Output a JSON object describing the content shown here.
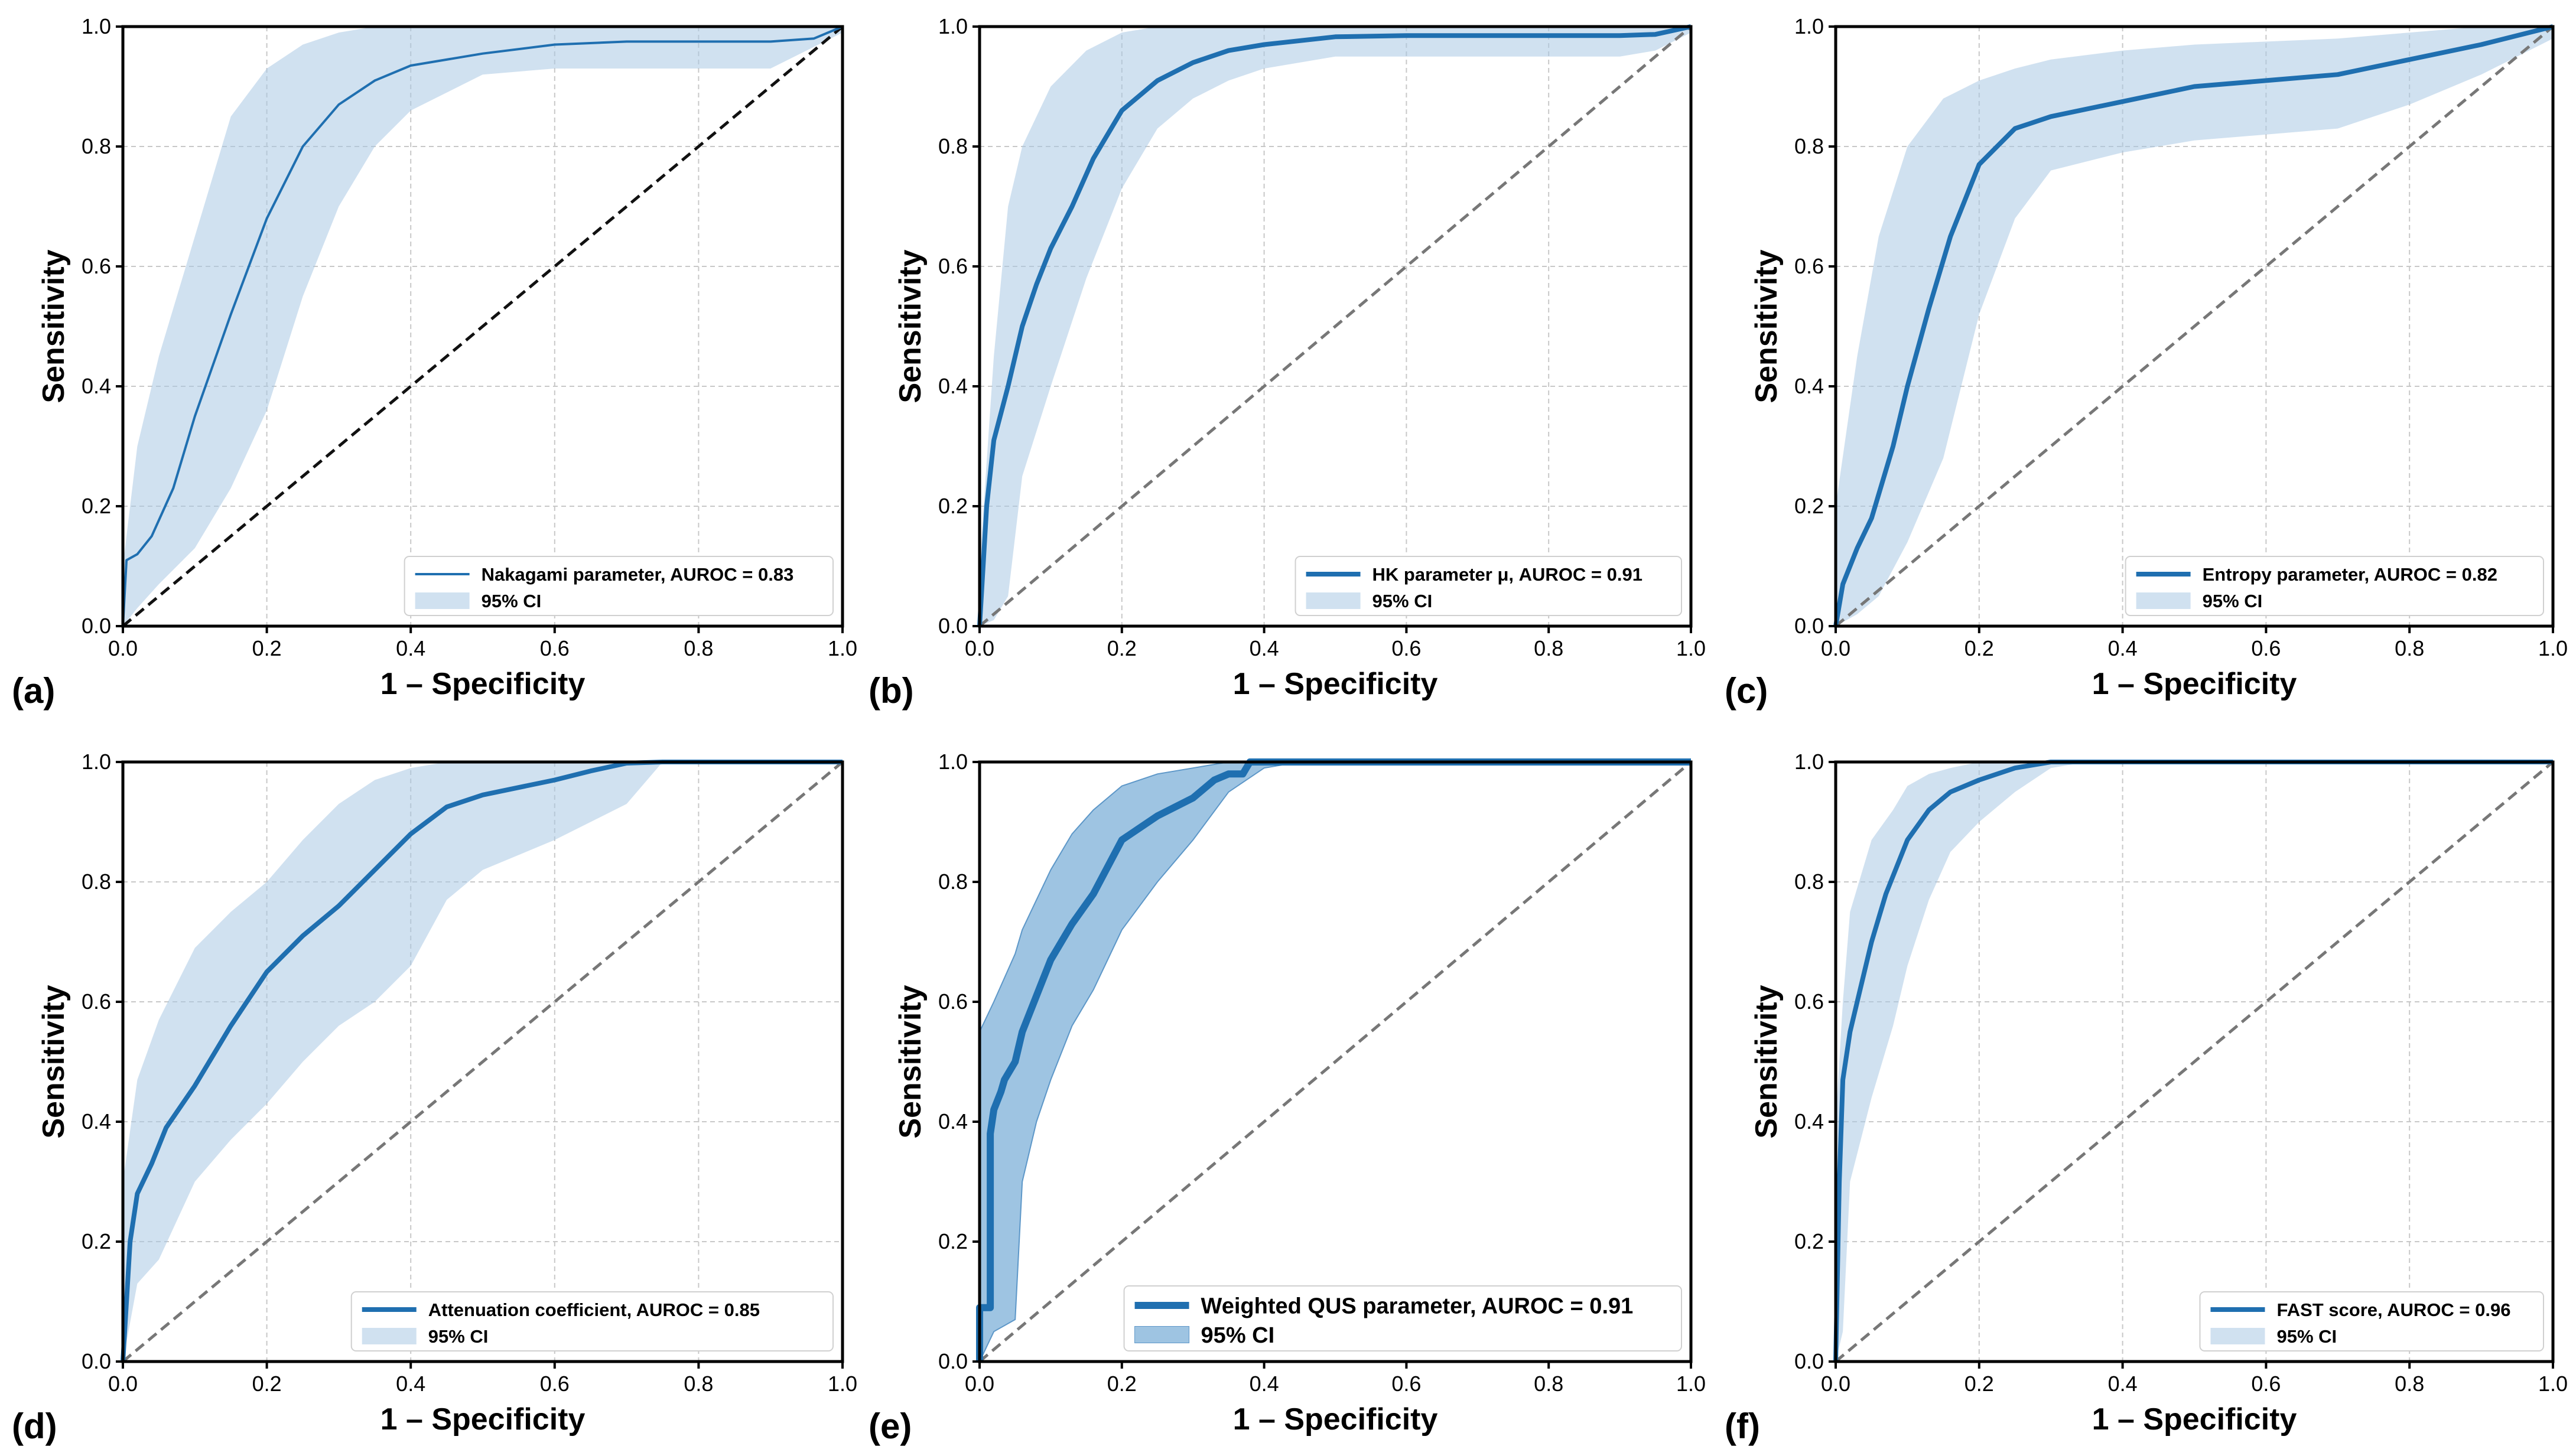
{
  "colors": {
    "curve": "#1f6fb0",
    "ci_fill": "#a9c9e3",
    "ci_fill_dark": "#7eb0d8",
    "diagonal": "#777777",
    "diagonal_black": "#111111",
    "grid": "#c8c8c8",
    "axis": "#000000"
  },
  "chart_data": [
    {
      "type": "line",
      "panel_label": "(a)",
      "xlabel": "1 – Specificity",
      "ylabel": "Sensitivity",
      "xlim": [
        0,
        1
      ],
      "ylim": [
        0,
        1
      ],
      "xticks": [
        "0.0",
        "0.2",
        "0.4",
        "0.6",
        "0.8",
        "1.0"
      ],
      "yticks": [
        "0.0",
        "0.2",
        "0.4",
        "0.6",
        "0.8",
        "1.0"
      ],
      "grid": true,
      "legend_position": "lower-right",
      "diagonal_style": "black",
      "series": [
        {
          "name": "Nakagami parameter, AUROC = 0.83",
          "style": "thin",
          "x": [
            0,
            0.005,
            0.02,
            0.04,
            0.07,
            0.1,
            0.15,
            0.2,
            0.25,
            0.3,
            0.35,
            0.4,
            0.5,
            0.6,
            0.7,
            0.8,
            0.9,
            0.96,
            1.0
          ],
          "y": [
            0,
            0.11,
            0.12,
            0.15,
            0.23,
            0.35,
            0.52,
            0.68,
            0.8,
            0.87,
            0.91,
            0.935,
            0.955,
            0.97,
            0.975,
            0.975,
            0.975,
            0.98,
            1.0
          ]
        },
        {
          "name": "95% CI",
          "kind": "band",
          "x": [
            0,
            0.02,
            0.05,
            0.1,
            0.15,
            0.2,
            0.25,
            0.3,
            0.35,
            0.4,
            0.5,
            0.6,
            0.7,
            0.8,
            0.9,
            1.0
          ],
          "lower": [
            0,
            0.03,
            0.07,
            0.13,
            0.23,
            0.36,
            0.55,
            0.7,
            0.8,
            0.86,
            0.92,
            0.93,
            0.93,
            0.93,
            0.93,
            0.99
          ],
          "upper": [
            0.1,
            0.3,
            0.45,
            0.65,
            0.85,
            0.93,
            0.97,
            0.99,
            1.0,
            1.0,
            1.0,
            1.0,
            1.0,
            1.0,
            1.0,
            1.0
          ]
        }
      ]
    },
    {
      "type": "line",
      "panel_label": "(b)",
      "xlabel": "1 – Specificity",
      "ylabel": "Sensitivity",
      "xlim": [
        0,
        1
      ],
      "ylim": [
        0,
        1
      ],
      "xticks": [
        "0.0",
        "0.2",
        "0.4",
        "0.6",
        "0.8",
        "1.0"
      ],
      "yticks": [
        "0.0",
        "0.2",
        "0.4",
        "0.6",
        "0.8",
        "1.0"
      ],
      "grid": true,
      "legend_position": "lower-right",
      "diagonal_style": "gray",
      "series": [
        {
          "name": "HK parameter μ, AUROC = 0.91",
          "style": "thick",
          "x": [
            0,
            0.01,
            0.02,
            0.04,
            0.06,
            0.08,
            0.1,
            0.13,
            0.16,
            0.2,
            0.25,
            0.3,
            0.35,
            0.4,
            0.5,
            0.6,
            0.7,
            0.8,
            0.9,
            0.95,
            1.0
          ],
          "y": [
            0,
            0.2,
            0.31,
            0.4,
            0.5,
            0.57,
            0.63,
            0.7,
            0.78,
            0.86,
            0.91,
            0.94,
            0.96,
            0.97,
            0.983,
            0.985,
            0.985,
            0.985,
            0.985,
            0.987,
            1.0
          ]
        },
        {
          "name": "95% CI",
          "kind": "band",
          "x": [
            0,
            0.02,
            0.04,
            0.06,
            0.1,
            0.15,
            0.2,
            0.25,
            0.3,
            0.35,
            0.4,
            0.5,
            0.6,
            0.7,
            0.8,
            0.9,
            0.95,
            1.0
          ],
          "lower": [
            0,
            0.01,
            0.05,
            0.25,
            0.4,
            0.58,
            0.73,
            0.83,
            0.88,
            0.91,
            0.93,
            0.95,
            0.95,
            0.95,
            0.95,
            0.95,
            0.96,
            0.99
          ],
          "upper": [
            0.1,
            0.45,
            0.7,
            0.8,
            0.9,
            0.96,
            0.99,
            1.0,
            1.0,
            1.0,
            1.0,
            1.0,
            1.0,
            1.0,
            1.0,
            1.0,
            1.0,
            1.0
          ]
        }
      ]
    },
    {
      "type": "line",
      "panel_label": "(c)",
      "xlabel": "1 – Specificity",
      "ylabel": "Sensitivity",
      "xlim": [
        0,
        1
      ],
      "ylim": [
        0,
        1
      ],
      "xticks": [
        "0.0",
        "0.2",
        "0.4",
        "0.6",
        "0.8",
        "1.0"
      ],
      "yticks": [
        "0.0",
        "0.2",
        "0.4",
        "0.6",
        "0.8",
        "1.0"
      ],
      "grid": true,
      "legend_position": "lower-right",
      "diagonal_style": "gray",
      "series": [
        {
          "name": "Entropy parameter, AUROC = 0.82",
          "style": "thick",
          "x": [
            0,
            0.01,
            0.03,
            0.05,
            0.08,
            0.1,
            0.13,
            0.16,
            0.2,
            0.25,
            0.3,
            0.4,
            0.5,
            0.6,
            0.7,
            0.8,
            0.9,
            1.0
          ],
          "y": [
            0,
            0.07,
            0.13,
            0.18,
            0.3,
            0.4,
            0.53,
            0.65,
            0.77,
            0.83,
            0.85,
            0.875,
            0.9,
            0.91,
            0.92,
            0.945,
            0.97,
            1.0
          ]
        },
        {
          "name": "95% CI",
          "kind": "band",
          "x": [
            0,
            0.03,
            0.06,
            0.1,
            0.15,
            0.2,
            0.25,
            0.3,
            0.4,
            0.5,
            0.6,
            0.7,
            0.8,
            0.9,
            1.0
          ],
          "lower": [
            0,
            0.02,
            0.05,
            0.14,
            0.28,
            0.52,
            0.68,
            0.76,
            0.79,
            0.81,
            0.82,
            0.83,
            0.87,
            0.92,
            0.98
          ],
          "upper": [
            0.2,
            0.45,
            0.65,
            0.8,
            0.88,
            0.91,
            0.93,
            0.945,
            0.96,
            0.97,
            0.975,
            0.98,
            0.99,
            1.0,
            1.0
          ]
        }
      ]
    },
    {
      "type": "line",
      "panel_label": "(d)",
      "xlabel": "1 – Specificity",
      "ylabel": "Sensitivity",
      "xlim": [
        0,
        1
      ],
      "ylim": [
        0,
        1
      ],
      "xticks": [
        "0.0",
        "0.2",
        "0.4",
        "0.6",
        "0.8",
        "1.0"
      ],
      "yticks": [
        "0.0",
        "0.2",
        "0.4",
        "0.6",
        "0.8",
        "1.0"
      ],
      "grid": true,
      "legend_position": "lower-right",
      "diagonal_style": "gray",
      "series": [
        {
          "name": "Attenuation coefficient, AUROC = 0.85",
          "style": "thick",
          "x": [
            0,
            0.01,
            0.02,
            0.04,
            0.06,
            0.1,
            0.15,
            0.2,
            0.25,
            0.3,
            0.35,
            0.4,
            0.45,
            0.5,
            0.6,
            0.65,
            0.7,
            0.75,
            1.0
          ],
          "y": [
            0,
            0.2,
            0.28,
            0.33,
            0.39,
            0.46,
            0.56,
            0.65,
            0.71,
            0.76,
            0.82,
            0.88,
            0.925,
            0.945,
            0.97,
            0.985,
            0.998,
            1.0,
            1.0
          ]
        },
        {
          "name": "95% CI",
          "kind": "band",
          "x": [
            0,
            0.02,
            0.05,
            0.1,
            0.15,
            0.2,
            0.25,
            0.3,
            0.35,
            0.4,
            0.45,
            0.5,
            0.6,
            0.7,
            0.75,
            0.8,
            1.0
          ],
          "lower": [
            0,
            0.13,
            0.17,
            0.3,
            0.37,
            0.43,
            0.5,
            0.56,
            0.6,
            0.66,
            0.77,
            0.82,
            0.87,
            0.93,
            1.0,
            1.0,
            1.0
          ],
          "upper": [
            0.3,
            0.47,
            0.57,
            0.69,
            0.75,
            0.8,
            0.87,
            0.93,
            0.97,
            0.99,
            1.0,
            1.0,
            1.0,
            1.0,
            1.0,
            1.0,
            1.0
          ]
        }
      ]
    },
    {
      "type": "line",
      "panel_label": "(e)",
      "xlabel": "1 – Specificity",
      "ylabel": "Sensitivity",
      "xlim": [
        0,
        1
      ],
      "ylim": [
        0,
        1
      ],
      "xticks": [
        "0.0",
        "0.2",
        "0.4",
        "0.6",
        "0.8",
        "1.0"
      ],
      "yticks": [
        "0.0",
        "0.2",
        "0.4",
        "0.6",
        "0.8",
        "1.0"
      ],
      "grid": false,
      "legend_position": "lower-right",
      "diagonal_style": "gray",
      "series": [
        {
          "name": "Weighted QUS parameter, AUROC = 0.91",
          "style": "heavy",
          "x": [
            0,
            0.0,
            0.015,
            0.015,
            0.02,
            0.03,
            0.035,
            0.05,
            0.06,
            0.08,
            0.1,
            0.13,
            0.16,
            0.2,
            0.25,
            0.3,
            0.33,
            0.35,
            0.37,
            0.38,
            1.0
          ],
          "y": [
            0,
            0.09,
            0.09,
            0.38,
            0.42,
            0.45,
            0.47,
            0.5,
            0.55,
            0.61,
            0.67,
            0.73,
            0.78,
            0.87,
            0.91,
            0.94,
            0.97,
            0.98,
            0.98,
            1.0,
            1.0
          ]
        },
        {
          "name": "95% CI",
          "kind": "band",
          "dark": true,
          "x": [
            0,
            0.02,
            0.05,
            0.06,
            0.08,
            0.1,
            0.13,
            0.16,
            0.2,
            0.25,
            0.3,
            0.35,
            0.4,
            0.45,
            0.5,
            1.0
          ],
          "lower": [
            0,
            0.05,
            0.07,
            0.3,
            0.4,
            0.47,
            0.56,
            0.62,
            0.72,
            0.8,
            0.87,
            0.95,
            0.99,
            1.0,
            1.0,
            1.0
          ],
          "upper": [
            0.55,
            0.6,
            0.68,
            0.72,
            0.77,
            0.82,
            0.88,
            0.92,
            0.96,
            0.98,
            0.99,
            1.0,
            1.0,
            1.0,
            1.0,
            1.0
          ]
        }
      ]
    },
    {
      "type": "line",
      "panel_label": "(f)",
      "xlabel": "1 – Specificity",
      "ylabel": "Sensitivity",
      "xlim": [
        0,
        1
      ],
      "ylim": [
        0,
        1
      ],
      "xticks": [
        "0.0",
        "0.2",
        "0.4",
        "0.6",
        "0.8",
        "1.0"
      ],
      "yticks": [
        "0.0",
        "0.2",
        "0.4",
        "0.6",
        "0.8",
        "1.0"
      ],
      "grid": true,
      "legend_position": "lower-right",
      "diagonal_style": "gray",
      "series": [
        {
          "name": "FAST score, AUROC = 0.96",
          "style": "thick",
          "x": [
            0,
            0.005,
            0.01,
            0.02,
            0.03,
            0.05,
            0.07,
            0.1,
            0.13,
            0.16,
            0.2,
            0.25,
            0.3,
            0.35,
            1.0
          ],
          "y": [
            0,
            0.3,
            0.47,
            0.55,
            0.6,
            0.7,
            0.78,
            0.87,
            0.92,
            0.95,
            0.97,
            0.99,
            1.0,
            1.0,
            1.0
          ]
        },
        {
          "name": "95% CI",
          "kind": "band",
          "x": [
            0,
            0.01,
            0.02,
            0.05,
            0.08,
            0.1,
            0.13,
            0.16,
            0.2,
            0.25,
            0.3,
            0.35,
            0.4,
            1.0
          ],
          "lower": [
            0,
            0.05,
            0.3,
            0.44,
            0.56,
            0.66,
            0.77,
            0.85,
            0.9,
            0.95,
            0.99,
            1.0,
            1.0,
            1.0
          ],
          "upper": [
            0.4,
            0.6,
            0.75,
            0.87,
            0.92,
            0.96,
            0.98,
            0.99,
            1.0,
            1.0,
            1.0,
            1.0,
            1.0,
            1.0
          ]
        }
      ]
    }
  ]
}
